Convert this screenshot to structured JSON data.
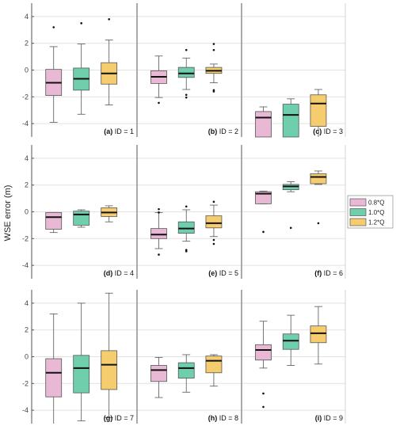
{
  "chart_data": {
    "type": "box",
    "ylabel": "WSE error (m)",
    "ylim": [
      -5,
      5
    ],
    "yticks": [
      "4",
      "2",
      "0",
      "-2",
      "-4"
    ],
    "grid": true,
    "legend": {
      "placement": "right",
      "entries": [
        {
          "name": "0.8*Q",
          "color": "#e9b8d4"
        },
        {
          "name": "1.0*Q",
          "color": "#6fcfad"
        },
        {
          "name": "1.2*Q",
          "color": "#f5cd6f"
        }
      ]
    },
    "panels": [
      {
        "letter": "(a)",
        "rest": " ID = 1",
        "boxes": [
          {
            "series": "0.8*Q",
            "min": -3.9,
            "q1": -1.9,
            "median": -0.95,
            "q3": 0.05,
            "max": 1.75,
            "outliers": [
              3.2
            ]
          },
          {
            "series": "1.0*Q",
            "min": -3.3,
            "q1": -1.5,
            "median": -0.65,
            "q3": 0.15,
            "max": 1.95,
            "outliers": [
              3.5
            ]
          },
          {
            "series": "1.2*Q",
            "min": -2.6,
            "q1": -1.05,
            "median": -0.25,
            "q3": 0.55,
            "max": 2.25,
            "outliers": [
              3.8
            ]
          }
        ]
      },
      {
        "letter": "(b)",
        "rest": " ID = 2",
        "boxes": [
          {
            "series": "0.8*Q",
            "min": -2.05,
            "q1": -1.0,
            "median": -0.5,
            "q3": -0.05,
            "max": 1.05,
            "outliers": [
              -2.45
            ]
          },
          {
            "series": "1.0*Q",
            "min": -1.45,
            "q1": -0.55,
            "median": -0.25,
            "q3": 0.2,
            "max": 0.9,
            "outliers": [
              1.5,
              -1.85,
              -2.05
            ]
          },
          {
            "series": "1.2*Q",
            "min": -0.95,
            "q1": -0.25,
            "median": -0.05,
            "q3": 0.2,
            "max": 0.45,
            "outliers": [
              1.95,
              1.5,
              -1.5,
              -1.6
            ]
          }
        ]
      },
      {
        "letter": "(c)",
        "rest": " ID = 3",
        "boxes": [
          {
            "series": "0.8*Q",
            "min": -5,
            "q1": -5,
            "median": -3.55,
            "q3": -3.1,
            "max": -2.75,
            "outliers": []
          },
          {
            "series": "1.0*Q",
            "min": -5,
            "q1": -5,
            "median": -3.35,
            "q3": -2.55,
            "max": -2.15,
            "outliers": []
          },
          {
            "series": "1.2*Q",
            "min": -5,
            "q1": -4.2,
            "median": -2.5,
            "q3": -1.85,
            "max": -1.45,
            "outliers": []
          }
        ]
      },
      {
        "letter": "(d)",
        "rest": " ID = 4",
        "boxes": [
          {
            "series": "0.8*Q",
            "min": -1.55,
            "q1": -1.3,
            "median": -0.4,
            "q3": -0.05,
            "max": -0.05,
            "outliers": []
          },
          {
            "series": "1.0*Q",
            "min": -1.15,
            "q1": -1.0,
            "median": -0.2,
            "q3": 0.05,
            "max": 0.15,
            "outliers": []
          },
          {
            "series": "1.2*Q",
            "min": -0.75,
            "q1": -0.35,
            "median": -0.05,
            "q3": 0.3,
            "max": 0.45,
            "outliers": []
          }
        ]
      },
      {
        "letter": "(e)",
        "rest": " ID = 5",
        "boxes": [
          {
            "series": "0.8*Q",
            "min": -2.75,
            "q1": -2.0,
            "median": -1.7,
            "q3": -1.25,
            "max": -0.05,
            "outliers": [
              0.2,
              -0.05,
              -3.2
            ]
          },
          {
            "series": "1.0*Q",
            "min": -2.2,
            "q1": -1.6,
            "median": -1.25,
            "q3": -0.75,
            "max": 0.15,
            "outliers": [
              0.4,
              -2.85,
              -2.95
            ]
          },
          {
            "series": "1.2*Q",
            "min": -1.85,
            "q1": -1.2,
            "median": -0.85,
            "q3": -0.3,
            "max": 0.5,
            "outliers": [
              0.75,
              -2.1,
              -2.4
            ]
          }
        ]
      },
      {
        "letter": "(f)",
        "rest": " ID = 6",
        "boxes": [
          {
            "series": "0.8*Q",
            "min": 0.6,
            "q1": 0.6,
            "median": 1.35,
            "q3": 1.5,
            "max": 1.55,
            "outliers": [
              -1.5
            ]
          },
          {
            "series": "1.0*Q",
            "min": 1.5,
            "q1": 1.65,
            "median": 1.9,
            "q3": 2.05,
            "max": 2.25,
            "outliers": [
              -1.2
            ]
          },
          {
            "series": "1.2*Q",
            "min": 2.05,
            "q1": 2.1,
            "median": 2.6,
            "q3": 2.85,
            "max": 3.05,
            "outliers": [
              -0.85
            ]
          }
        ]
      },
      {
        "letter": "(g)",
        "rest": " ID = 7",
        "boxes": [
          {
            "series": "0.8*Q",
            "min": -5,
            "q1": -3.0,
            "median": -1.2,
            "q3": -0.15,
            "max": 3.2,
            "outliers": []
          },
          {
            "series": "1.0*Q",
            "min": -4.8,
            "q1": -2.7,
            "median": -0.85,
            "q3": 0.1,
            "max": 4.0,
            "outliers": []
          },
          {
            "series": "1.2*Q",
            "min": -4.55,
            "q1": -2.45,
            "median": -0.6,
            "q3": 0.45,
            "max": 4.75,
            "outliers": []
          }
        ]
      },
      {
        "letter": "(h)",
        "rest": " ID = 8",
        "boxes": [
          {
            "series": "0.8*Q",
            "min": -3.05,
            "q1": -1.85,
            "median": -1.0,
            "q3": -0.65,
            "max": -0.05,
            "outliers": []
          },
          {
            "series": "1.0*Q",
            "min": -2.65,
            "q1": -1.6,
            "median": -0.85,
            "q3": -0.45,
            "max": 0.15,
            "outliers": []
          },
          {
            "series": "1.2*Q",
            "min": -2.2,
            "q1": -1.2,
            "median": -0.3,
            "q3": 0.05,
            "max": 0.15,
            "outliers": []
          }
        ]
      },
      {
        "letter": "(i)",
        "rest": " ID = 9",
        "boxes": [
          {
            "series": "0.8*Q",
            "min": -0.85,
            "q1": -0.25,
            "median": 0.5,
            "q3": 0.9,
            "max": 2.65,
            "outliers": [
              -2.75,
              -3.75
            ]
          },
          {
            "series": "1.0*Q",
            "min": -0.65,
            "q1": 0.55,
            "median": 1.2,
            "q3": 1.7,
            "max": 3.1,
            "outliers": []
          },
          {
            "series": "1.2*Q",
            "min": -0.55,
            "q1": 1.05,
            "median": 1.75,
            "q3": 2.3,
            "max": 3.75,
            "outliers": []
          }
        ]
      }
    ]
  }
}
